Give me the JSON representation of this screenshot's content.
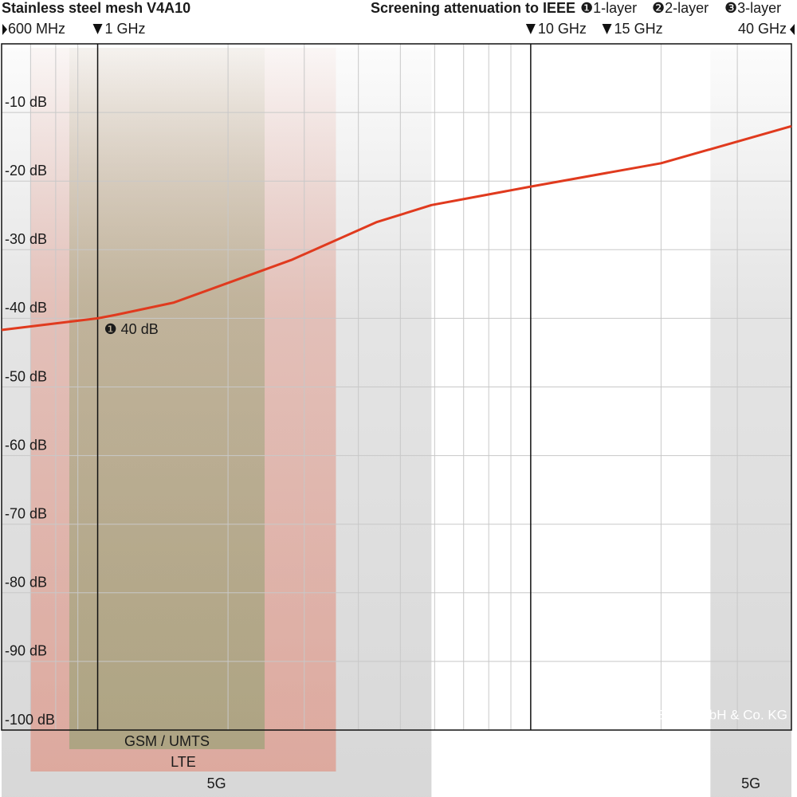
{
  "chart_data": {
    "type": "line",
    "title": "Stainless steel mesh V4A10",
    "subtitle": "Screening attenuation to IEEE",
    "layers": [
      "❶1-layer",
      "❷2-layer",
      "❸3-layer"
    ],
    "x_scale": "log",
    "xlim": [
      0.6,
      40
    ],
    "ylim": [
      -100,
      0
    ],
    "xticks": [
      {
        "value": 0.6,
        "label": "600 MHz"
      },
      {
        "value": 1,
        "label": "1 GHz"
      },
      {
        "value": 10,
        "label": "10 GHz"
      },
      {
        "value": 15,
        "label": "15 GHz"
      },
      {
        "value": 40,
        "label": "40 GHz"
      }
    ],
    "x_reference_lines": [
      1,
      10
    ],
    "yticks": [
      {
        "value": -100,
        "label": "-100 dB"
      },
      {
        "value": -90,
        "label": "-90 dB"
      },
      {
        "value": -80,
        "label": "-80 dB"
      },
      {
        "value": -70,
        "label": "-70 dB"
      },
      {
        "value": -60,
        "label": "-60 dB"
      },
      {
        "value": -50,
        "label": "-50 dB"
      },
      {
        "value": -40,
        "label": "-40 dB"
      },
      {
        "value": -30,
        "label": "-30 dB"
      },
      {
        "value": -20,
        "label": "-20 dB"
      },
      {
        "value": -10,
        "label": "-10 dB"
      }
    ],
    "grid": true,
    "x": [
      0.6,
      1,
      1.1,
      1.5,
      2.8,
      4.4,
      5.9,
      10,
      20,
      40
    ],
    "series": [
      {
        "name": "1-layer",
        "color": "#e03a1e",
        "values": [
          -41.7,
          -40,
          -39.5,
          -37.7,
          -31.5,
          -26,
          -23.5,
          -20.8,
          -17.4,
          -12
        ]
      }
    ],
    "bands": [
      {
        "label": "5G",
        "from": 0.6,
        "to": 5.9,
        "color": "#bdbdbd"
      },
      {
        "label": "LTE",
        "from": 0.7,
        "to": 3.55,
        "color": "#e08a78"
      },
      {
        "label": "GSM / UMTS",
        "from": 0.86,
        "to": 2.43,
        "color": "#8ea070"
      },
      {
        "label": "5G",
        "from": 26,
        "to": 40,
        "color": "#bdbdbd"
      }
    ],
    "annotations": [
      {
        "text": "❶ 40 dB",
        "x": 1,
        "y": -40
      }
    ],
    "copyright": "© YSHIELD GmbH & Co. KG"
  }
}
